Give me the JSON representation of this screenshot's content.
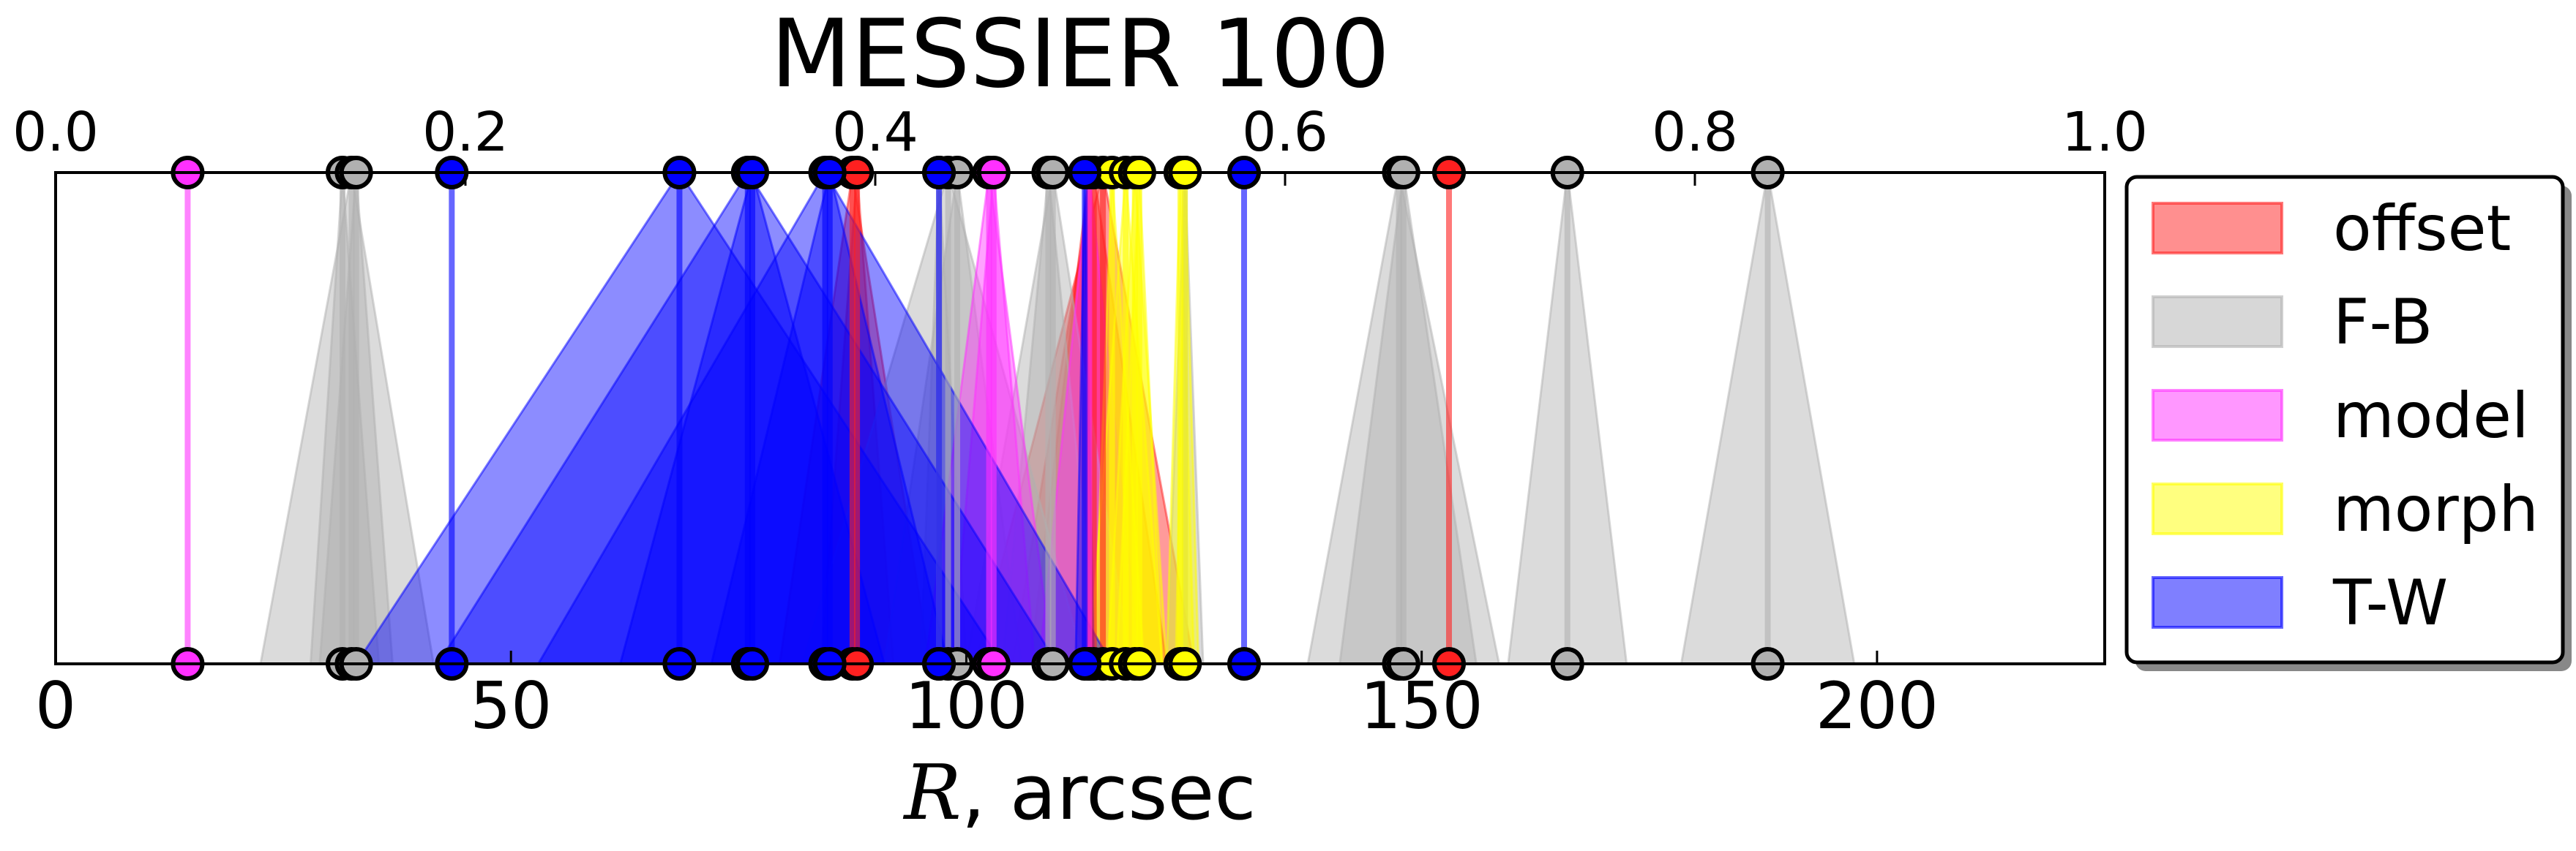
{
  "chart_data": {
    "type": "range-markers",
    "title": "MESSIER 100",
    "xlabel": "R, arcsec",
    "xlim": [
      0,
      225
    ],
    "xticks": [
      0,
      50,
      100,
      150,
      200
    ],
    "top_axis": {
      "xlim": [
        0.0,
        1.0
      ],
      "ticks": [
        "0.0",
        "0.2",
        "0.4",
        "0.6",
        "0.8",
        "1.0"
      ]
    },
    "grid": false,
    "legend_position": "right",
    "series": [
      {
        "name": "offset",
        "color": "#ff2020",
        "markers": [
          {
            "x": 87.5,
            "lo": 79.5,
            "hi": 96.0
          },
          {
            "x": 88.0,
            "lo": 84.0,
            "hi": 92.0
          },
          {
            "x": 113.5,
            "lo": 107.0,
            "hi": 119.0
          },
          {
            "x": 114.0,
            "lo": 105.0,
            "hi": 122.0
          },
          {
            "x": 115.0,
            "lo": 101.0,
            "hi": 125.0
          },
          {
            "x": 153.0,
            "lo": 153.0,
            "hi": 153.0
          }
        ]
      },
      {
        "name": "F-B",
        "color": "#b0b0b0",
        "markers": [
          {
            "x": 31.5,
            "lo": 28.0,
            "hi": 35.5
          },
          {
            "x": 32.5,
            "lo": 22.5,
            "hi": 41.5
          },
          {
            "x": 33.0,
            "lo": 29.0,
            "hi": 37.0
          },
          {
            "x": 97.0,
            "lo": 95.0,
            "hi": 100.0
          },
          {
            "x": 98.0,
            "lo": 82.0,
            "hi": 113.0
          },
          {
            "x": 99.0,
            "lo": 91.0,
            "hi": 106.0
          },
          {
            "x": 109.0,
            "lo": 104.0,
            "hi": 114.5
          },
          {
            "x": 109.5,
            "lo": 100.0,
            "hi": 118.0
          },
          {
            "x": 124.0,
            "lo": 122.0,
            "hi": 126.0
          },
          {
            "x": 147.5,
            "lo": 137.5,
            "hi": 158.5
          },
          {
            "x": 148.0,
            "lo": 141.0,
            "hi": 156.0
          },
          {
            "x": 166.0,
            "lo": 159.5,
            "hi": 172.5
          },
          {
            "x": 188.0,
            "lo": 178.5,
            "hi": 197.5
          }
        ]
      },
      {
        "name": "model",
        "color": "#ff30ff",
        "markers": [
          {
            "x": 14.5,
            "lo": 14.5,
            "hi": 14.5
          },
          {
            "x": 102.5,
            "lo": 95.5,
            "hi": 109.5
          },
          {
            "x": 103.0,
            "lo": 98.5,
            "hi": 107.5
          },
          {
            "x": 113.5,
            "lo": 108.0,
            "hi": 119.0
          }
        ]
      },
      {
        "name": "morph",
        "color": "#ffff00",
        "markers": [
          {
            "x": 116.0,
            "lo": 114.0,
            "hi": 119.5
          },
          {
            "x": 117.5,
            "lo": 113.5,
            "hi": 121.5
          },
          {
            "x": 118.5,
            "lo": 115.5,
            "hi": 122.0
          },
          {
            "x": 119.0,
            "lo": 116.5,
            "hi": 121.5
          },
          {
            "x": 123.5,
            "lo": 122.0,
            "hi": 125.0
          },
          {
            "x": 124.0,
            "lo": 123.0,
            "hi": 125.5
          }
        ]
      },
      {
        "name": "T-W",
        "color": "#0000ff",
        "markers": [
          {
            "x": 43.5,
            "lo": 43.5,
            "hi": 43.5
          },
          {
            "x": 68.5,
            "lo": 33.0,
            "hi": 104.0
          },
          {
            "x": 76.0,
            "lo": 42.0,
            "hi": 110.0
          },
          {
            "x": 76.5,
            "lo": 62.0,
            "hi": 91.0
          },
          {
            "x": 84.5,
            "lo": 53.0,
            "hi": 116.0
          },
          {
            "x": 85.0,
            "lo": 72.0,
            "hi": 98.0
          },
          {
            "x": 97.0,
            "lo": 97.0,
            "hi": 97.0
          },
          {
            "x": 113.0,
            "lo": 112.0,
            "hi": 114.0
          },
          {
            "x": 130.5,
            "lo": 130.5,
            "hi": 130.5
          }
        ]
      }
    ]
  }
}
